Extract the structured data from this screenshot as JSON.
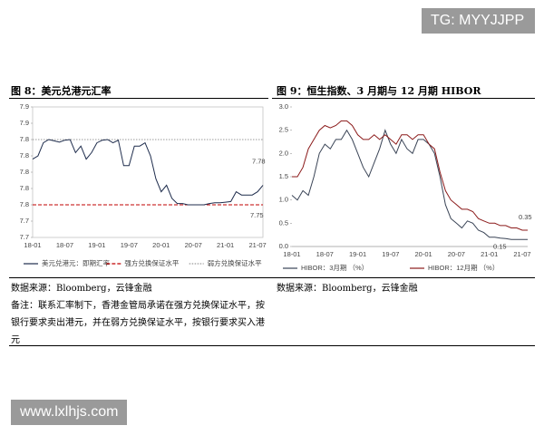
{
  "watermarks": [
    "TG: MYYJJPP",
    "www.lxlhjs.com"
  ],
  "chart_data": [
    {
      "type": "line",
      "title": "图 8：美元兑港元汇率",
      "categories": [
        "18-01",
        null,
        null,
        null,
        null,
        null,
        "18-07",
        null,
        null,
        null,
        null,
        null,
        "19-01",
        null,
        null,
        null,
        null,
        null,
        "19-07",
        null,
        null,
        null,
        null,
        null,
        "20-01",
        null,
        null,
        null,
        null,
        null,
        "20-07",
        null,
        null,
        null,
        null,
        null,
        "21-01",
        null,
        null,
        null,
        null,
        null,
        "21-07",
        null
      ],
      "series": [
        {
          "name": "美元兑港元：即期汇率",
          "color": "#1f2d4d",
          "values": [
            7.82,
            7.825,
            7.845,
            7.85,
            7.848,
            7.846,
            7.849,
            7.85,
            7.83,
            7.84,
            7.82,
            7.83,
            7.845,
            7.849,
            7.85,
            7.845,
            7.849,
            7.81,
            7.81,
            7.84,
            7.84,
            7.845,
            7.825,
            7.79,
            7.77,
            7.78,
            7.76,
            7.752,
            7.752,
            7.75,
            7.75,
            7.75,
            7.75,
            7.752,
            7.753,
            7.753,
            7.754,
            7.755,
            7.77,
            7.765,
            7.765,
            7.765,
            7.77,
            7.78
          ]
        }
      ],
      "reference_lines": [
        {
          "name": "强方兑换保证水平",
          "value": 7.75,
          "color": "#c00000",
          "style": "dashed"
        },
        {
          "name": "弱方兑换保证水平",
          "value": 7.85,
          "color": "#999999",
          "style": "dotted"
        }
      ],
      "annotations": [
        "7.78",
        "7.75"
      ],
      "ylim": [
        7.7,
        7.9
      ],
      "yticks": [
        {
          "value": 7.7,
          "label": "7.7"
        },
        {
          "value": 7.725,
          "label": "7.7"
        },
        {
          "value": 7.75,
          "label": "7.8"
        },
        {
          "value": 7.775,
          "label": "7.8"
        },
        {
          "value": 7.8,
          "label": "7.8"
        },
        {
          "value": 7.825,
          "label": "7.8"
        },
        {
          "value": 7.85,
          "label": "7.8"
        },
        {
          "value": 7.875,
          "label": "7.9"
        },
        {
          "value": 7.9,
          "label": "7.9"
        }
      ],
      "grid": false,
      "frame": true
    },
    {
      "type": "line",
      "title": "图 9：恒生指数、3 月期与 12 月期 HIBOR",
      "categories": [
        "18-01",
        null,
        null,
        null,
        null,
        null,
        "18-07",
        null,
        null,
        null,
        null,
        null,
        "19-01",
        null,
        null,
        null,
        null,
        null,
        "19-07",
        null,
        null,
        null,
        null,
        null,
        "20-01",
        null,
        null,
        null,
        null,
        null,
        "20-07",
        null,
        null,
        null,
        null,
        null,
        "21-01",
        null,
        null,
        null,
        null,
        null,
        "21-07",
        null
      ],
      "series": [
        {
          "name": "HIBOR：3月期 （%）",
          "color": "#3a4456",
          "values": [
            1.1,
            1.0,
            1.2,
            1.1,
            1.5,
            2.0,
            2.2,
            2.1,
            2.3,
            2.3,
            2.5,
            2.3,
            2.0,
            1.7,
            1.5,
            1.8,
            2.1,
            2.5,
            2.2,
            2.0,
            2.3,
            2.1,
            2.0,
            2.3,
            2.3,
            2.2,
            2.0,
            1.5,
            0.9,
            0.6,
            0.5,
            0.4,
            0.55,
            0.5,
            0.35,
            0.3,
            0.2,
            0.2,
            0.18,
            0.17,
            0.15,
            0.15,
            0.15,
            0.15
          ]
        },
        {
          "name": "HIBOR：12月期 （%）",
          "color": "#8b1a1a",
          "values": [
            1.5,
            1.5,
            1.7,
            2.1,
            2.3,
            2.5,
            2.6,
            2.55,
            2.6,
            2.7,
            2.7,
            2.6,
            2.4,
            2.3,
            2.3,
            2.4,
            2.3,
            2.4,
            2.3,
            2.2,
            2.4,
            2.4,
            2.3,
            2.4,
            2.4,
            2.2,
            2.1,
            1.6,
            1.2,
            1.0,
            0.9,
            0.8,
            0.8,
            0.75,
            0.6,
            0.55,
            0.5,
            0.5,
            0.45,
            0.45,
            0.4,
            0.4,
            0.35,
            0.35
          ]
        }
      ],
      "reference_lines": [],
      "annotations": [
        "0.35",
        "0.15"
      ],
      "ylim": [
        0,
        3
      ],
      "yticks": [
        {
          "value": 0,
          "label": "0.0"
        },
        {
          "value": 0.5,
          "label": "0.5"
        },
        {
          "value": 1,
          "label": "1.0"
        },
        {
          "value": 1.5,
          "label": "1.5"
        },
        {
          "value": 2,
          "label": "2.0"
        },
        {
          "value": 2.5,
          "label": "2.5"
        },
        {
          "value": 3,
          "label": "3.0"
        }
      ],
      "grid": false,
      "frame": false
    }
  ],
  "sources": [
    "数据来源：Bloomberg，云锋金融",
    "数据来源：Bloomberg，云锋金融"
  ],
  "note": "备注：联系汇率制下，香港金管局承诺在强方兑换保证水平，按银行要求卖出港元，并在弱方兑换保证水平，按银行要求买入港元"
}
